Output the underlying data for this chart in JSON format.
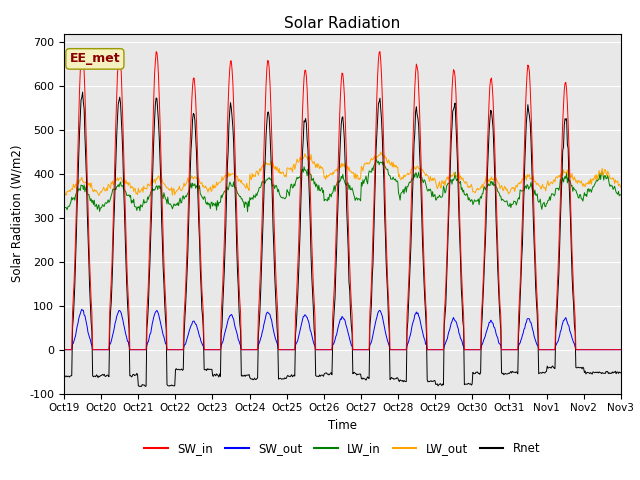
{
  "title": "Solar Radiation",
  "ylabel": "Solar Radiation (W/m2)",
  "xlabel": "Time",
  "ylim": [
    -100,
    720
  ],
  "yticks": [
    -100,
    0,
    100,
    200,
    300,
    400,
    500,
    600,
    700
  ],
  "xtick_labels": [
    "Oct 19",
    "Oct 20",
    "Oct 21",
    "Oct 22",
    "Oct 23",
    "Oct 24",
    "Oct 25",
    "Oct 26",
    "Oct 27",
    "Oct 28",
    "Oct 29",
    "Oct 30",
    "Oct 31",
    "Nov 1",
    "Nov 2",
    "Nov 3"
  ],
  "annotation_text": "EE_met",
  "annotation_color": "#8B0000",
  "background_color": "#e8e8e8",
  "sw_in_color": "red",
  "sw_out_color": "blue",
  "lw_in_color": "green",
  "lw_out_color": "orange",
  "rnet_color": "black",
  "n_days": 15,
  "pts_per_day": 48,
  "sw_in_peak": [
    690,
    680,
    680,
    620,
    660,
    660,
    640,
    630,
    680,
    650,
    640,
    620,
    650,
    610,
    0
  ],
  "sw_out_peak": [
    90,
    88,
    88,
    65,
    80,
    85,
    80,
    75,
    88,
    85,
    70,
    65,
    70,
    70,
    0
  ],
  "lw_in_base": [
    320,
    325,
    320,
    325,
    325,
    340,
    360,
    340,
    380,
    350,
    340,
    330,
    325,
    340,
    350
  ],
  "lw_out_base": [
    355,
    360,
    360,
    360,
    370,
    395,
    410,
    390,
    415,
    385,
    370,
    360,
    365,
    375,
    375
  ],
  "rnet_night": [
    -50,
    -48,
    -70,
    -35,
    -45,
    -50,
    -45,
    -40,
    -55,
    -60,
    -70,
    -45,
    -40,
    -30,
    -45
  ],
  "figsize": [
    6.4,
    4.8
  ],
  "dpi": 100
}
